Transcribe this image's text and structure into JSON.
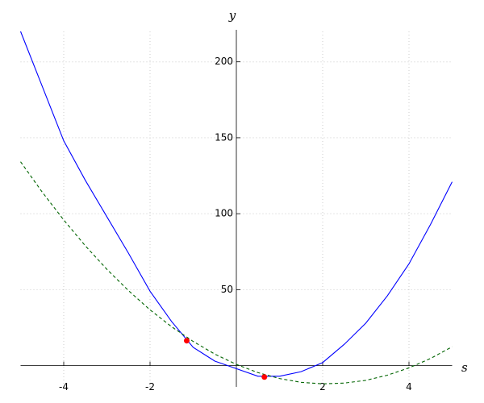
{
  "chart_data": {
    "type": "line",
    "x_label": "s",
    "y_label": "y",
    "x": [
      -5,
      -4.5,
      -4,
      -3.5,
      -3,
      -2.5,
      -2,
      -1.5,
      -1,
      -0.5,
      0,
      0.5,
      1,
      1.5,
      2,
      2.5,
      3,
      3.5,
      4,
      4.5,
      5
    ],
    "series": [
      {
        "color": "#0000ff",
        "dash": false,
        "values": [
          220,
          184,
          148,
          122,
          98,
          74,
          49,
          29,
          12,
          3,
          -2,
          -7,
          -7,
          -4,
          2,
          14,
          28,
          46,
          67,
          93,
          121
        ]
      },
      {
        "color": "#006400",
        "dash": true,
        "values": [
          134.2,
          114.3,
          95.9,
          78.9,
          63.4,
          49.4,
          36.7,
          25.6,
          15.9,
          7.6,
          0.8,
          -4.6,
          -8.5,
          -11,
          -12,
          -11.5,
          -9.7,
          -6.3,
          -1.5,
          4.7,
          12.4
        ]
      }
    ],
    "points": {
      "x": [
        -1.15,
        0.65
      ],
      "values": [
        16.4,
        -7.5
      ],
      "color": "#ff0000"
    },
    "xlim": [
      -5,
      5
    ],
    "ylim": [
      -14,
      220
    ],
    "xticks": [
      -4,
      -2,
      2,
      4
    ],
    "yticks": [
      50,
      100,
      150,
      200
    ],
    "grid": true
  }
}
